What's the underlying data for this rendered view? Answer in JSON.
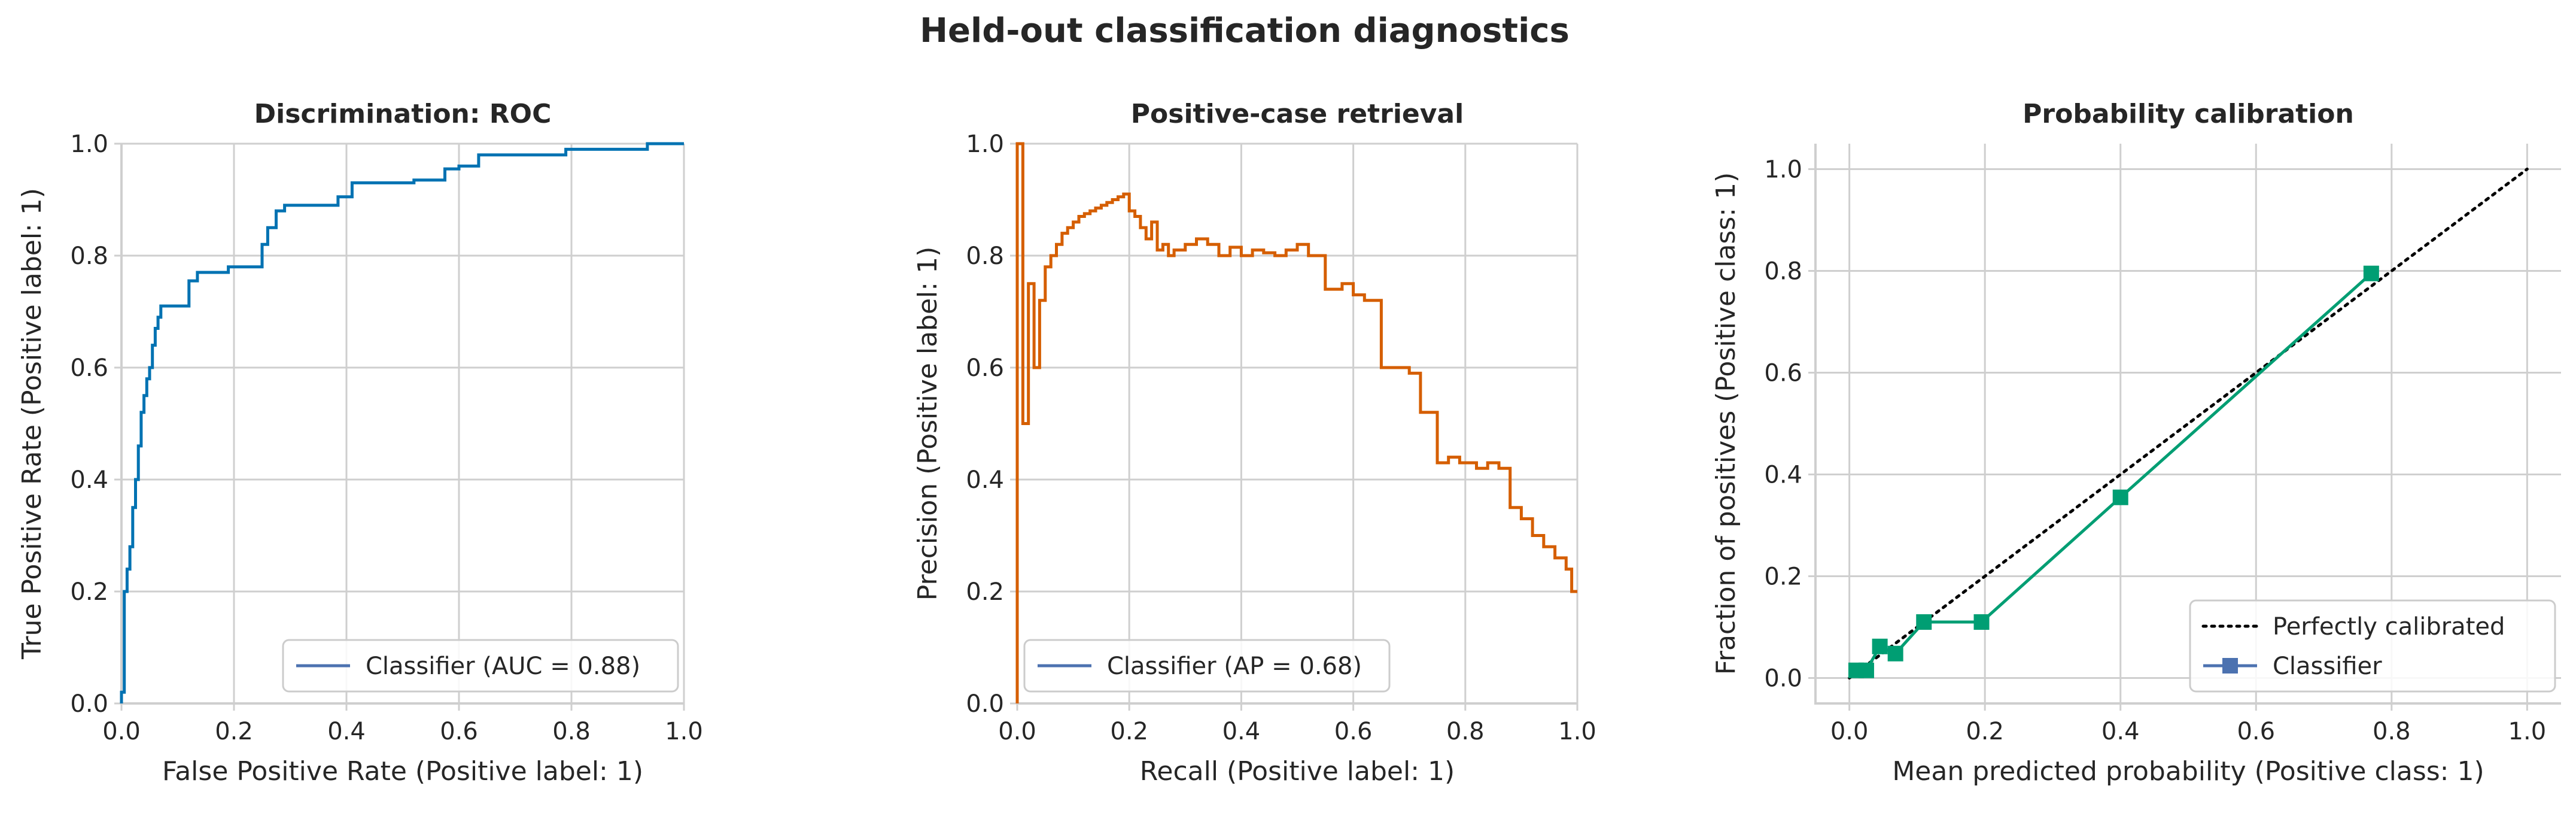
{
  "figure": {
    "title": "Held-out classification diagnostics"
  },
  "chart_data": [
    {
      "type": "line",
      "subtype": "roc-step",
      "title": "Discrimination: ROC",
      "xlabel": "False Positive Rate (Positive label: 1)",
      "ylabel": "True Positive Rate (Positive label: 1)",
      "xlim": [
        0.0,
        1.0
      ],
      "ylim": [
        0.0,
        1.0
      ],
      "xticks": [
        "0.0",
        "0.2",
        "0.4",
        "0.6",
        "0.8",
        "1.0"
      ],
      "yticks": [
        "0.0",
        "0.2",
        "0.4",
        "0.6",
        "0.8",
        "1.0"
      ],
      "grid": true,
      "legend": {
        "position": "lower-right",
        "entries": [
          {
            "label": "Classifier (AUC = 0.88)",
            "color": "#4c72b0"
          }
        ]
      },
      "series": [
        {
          "name": "Classifier (AUC = 0.88)",
          "color": "#0072b2",
          "x": [
            0,
            0,
            0.005,
            0.005,
            0.01,
            0.01,
            0.015,
            0.015,
            0.02,
            0.02,
            0.025,
            0.025,
            0.03,
            0.03,
            0.035,
            0.035,
            0.04,
            0.04,
            0.045,
            0.045,
            0.05,
            0.05,
            0.055,
            0.055,
            0.06,
            0.06,
            0.065,
            0.065,
            0.07,
            0.07,
            0.12,
            0.12,
            0.135,
            0.135,
            0.19,
            0.19,
            0.25,
            0.25,
            0.26,
            0.26,
            0.275,
            0.275,
            0.29,
            0.29,
            0.385,
            0.385,
            0.41,
            0.41,
            0.52,
            0.52,
            0.575,
            0.575,
            0.6,
            0.6,
            0.635,
            0.635,
            0.79,
            0.79,
            0.935,
            0.935,
            1.0
          ],
          "y": [
            0,
            0.02,
            0.02,
            0.2,
            0.2,
            0.24,
            0.24,
            0.28,
            0.28,
            0.35,
            0.35,
            0.4,
            0.4,
            0.46,
            0.46,
            0.52,
            0.52,
            0.55,
            0.55,
            0.58,
            0.58,
            0.6,
            0.6,
            0.64,
            0.64,
            0.67,
            0.67,
            0.69,
            0.69,
            0.71,
            0.71,
            0.755,
            0.755,
            0.77,
            0.77,
            0.78,
            0.78,
            0.82,
            0.82,
            0.85,
            0.85,
            0.88,
            0.88,
            0.89,
            0.89,
            0.905,
            0.905,
            0.93,
            0.93,
            0.935,
            0.935,
            0.955,
            0.955,
            0.96,
            0.96,
            0.98,
            0.98,
            0.99,
            0.99,
            1.0,
            1.0
          ]
        }
      ]
    },
    {
      "type": "line",
      "subtype": "precision-recall-step",
      "title": "Positive-case retrieval",
      "xlabel": "Recall (Positive label: 1)",
      "ylabel": "Precision (Positive label: 1)",
      "xlim": [
        0.0,
        1.0
      ],
      "ylim": [
        0.0,
        1.0
      ],
      "xticks": [
        "0.0",
        "0.2",
        "0.4",
        "0.6",
        "0.8",
        "1.0"
      ],
      "yticks": [
        "0.0",
        "0.2",
        "0.4",
        "0.6",
        "0.8",
        "1.0"
      ],
      "grid": true,
      "legend": {
        "position": "lower-left",
        "entries": [
          {
            "label": "Classifier (AP = 0.68)",
            "color": "#4c72b0"
          }
        ]
      },
      "series": [
        {
          "name": "Classifier (AP = 0.68)",
          "color": "#d55e00",
          "x": [
            0,
            0,
            0.01,
            0.01,
            0.02,
            0.02,
            0.03,
            0.03,
            0.04,
            0.04,
            0.05,
            0.05,
            0.06,
            0.06,
            0.07,
            0.07,
            0.08,
            0.08,
            0.09,
            0.09,
            0.1,
            0.1,
            0.11,
            0.11,
            0.12,
            0.12,
            0.13,
            0.13,
            0.14,
            0.14,
            0.15,
            0.15,
            0.16,
            0.16,
            0.17,
            0.17,
            0.18,
            0.18,
            0.19,
            0.19,
            0.2,
            0.2,
            0.21,
            0.21,
            0.22,
            0.22,
            0.23,
            0.23,
            0.24,
            0.24,
            0.25,
            0.25,
            0.26,
            0.26,
            0.27,
            0.27,
            0.28,
            0.28,
            0.3,
            0.3,
            0.32,
            0.32,
            0.34,
            0.34,
            0.36,
            0.36,
            0.38,
            0.38,
            0.4,
            0.4,
            0.42,
            0.42,
            0.44,
            0.44,
            0.46,
            0.46,
            0.48,
            0.48,
            0.5,
            0.5,
            0.52,
            0.52,
            0.55,
            0.55,
            0.58,
            0.58,
            0.6,
            0.6,
            0.62,
            0.62,
            0.65,
            0.65,
            0.7,
            0.7,
            0.72,
            0.72,
            0.75,
            0.75,
            0.77,
            0.77,
            0.79,
            0.79,
            0.82,
            0.82,
            0.84,
            0.84,
            0.86,
            0.86,
            0.88,
            0.88,
            0.9,
            0.9,
            0.92,
            0.92,
            0.94,
            0.94,
            0.96,
            0.96,
            0.98,
            0.98,
            0.99,
            0.99,
            1.0
          ],
          "y": [
            0,
            1.0,
            1.0,
            0.5,
            0.5,
            0.75,
            0.75,
            0.6,
            0.6,
            0.72,
            0.72,
            0.78,
            0.78,
            0.8,
            0.8,
            0.82,
            0.82,
            0.84,
            0.84,
            0.85,
            0.85,
            0.86,
            0.86,
            0.87,
            0.87,
            0.875,
            0.875,
            0.88,
            0.88,
            0.885,
            0.885,
            0.89,
            0.89,
            0.895,
            0.895,
            0.9,
            0.9,
            0.905,
            0.905,
            0.91,
            0.91,
            0.88,
            0.88,
            0.87,
            0.87,
            0.85,
            0.85,
            0.83,
            0.83,
            0.86,
            0.86,
            0.81,
            0.81,
            0.82,
            0.82,
            0.8,
            0.8,
            0.81,
            0.81,
            0.82,
            0.82,
            0.83,
            0.83,
            0.82,
            0.82,
            0.8,
            0.8,
            0.815,
            0.815,
            0.8,
            0.8,
            0.81,
            0.81,
            0.805,
            0.805,
            0.8,
            0.8,
            0.81,
            0.81,
            0.82,
            0.82,
            0.8,
            0.8,
            0.74,
            0.74,
            0.75,
            0.75,
            0.73,
            0.73,
            0.72,
            0.72,
            0.6,
            0.6,
            0.59,
            0.59,
            0.52,
            0.52,
            0.43,
            0.43,
            0.44,
            0.44,
            0.43,
            0.43,
            0.42,
            0.42,
            0.43,
            0.43,
            0.42,
            0.42,
            0.35,
            0.35,
            0.33,
            0.33,
            0.3,
            0.3,
            0.28,
            0.28,
            0.26,
            0.26,
            0.24,
            0.24,
            0.2,
            0.2
          ]
        }
      ]
    },
    {
      "type": "line",
      "subtype": "calibration",
      "title": "Probability calibration",
      "xlabel": "Mean predicted probability (Positive class: 1)",
      "ylabel": "Fraction of positives (Positive class: 1)",
      "xlim": [
        -0.05,
        1.05
      ],
      "ylim": [
        -0.05,
        1.05
      ],
      "xticks": [
        "0.0",
        "0.2",
        "0.4",
        "0.6",
        "0.8",
        "1.0"
      ],
      "yticks": [
        "0.0",
        "0.2",
        "0.4",
        "0.6",
        "0.8",
        "1.0"
      ],
      "grid": true,
      "legend": {
        "position": "lower-right",
        "entries": [
          {
            "label": "Perfectly calibrated",
            "color": "#000000",
            "style": "dotted"
          },
          {
            "label": "Classifier",
            "color": "#4c72b0",
            "style": "line-square"
          }
        ]
      },
      "reference": {
        "name": "Perfectly calibrated",
        "x": [
          0,
          1
        ],
        "y": [
          0,
          1
        ],
        "color": "#000000"
      },
      "series": [
        {
          "name": "Classifier",
          "color": "#009e73",
          "x": [
            0.01,
            0.025,
            0.045,
            0.068,
            0.11,
            0.195,
            0.4,
            0.77
          ],
          "y": [
            0.015,
            0.015,
            0.062,
            0.048,
            0.11,
            0.11,
            0.355,
            0.795
          ]
        }
      ]
    }
  ]
}
